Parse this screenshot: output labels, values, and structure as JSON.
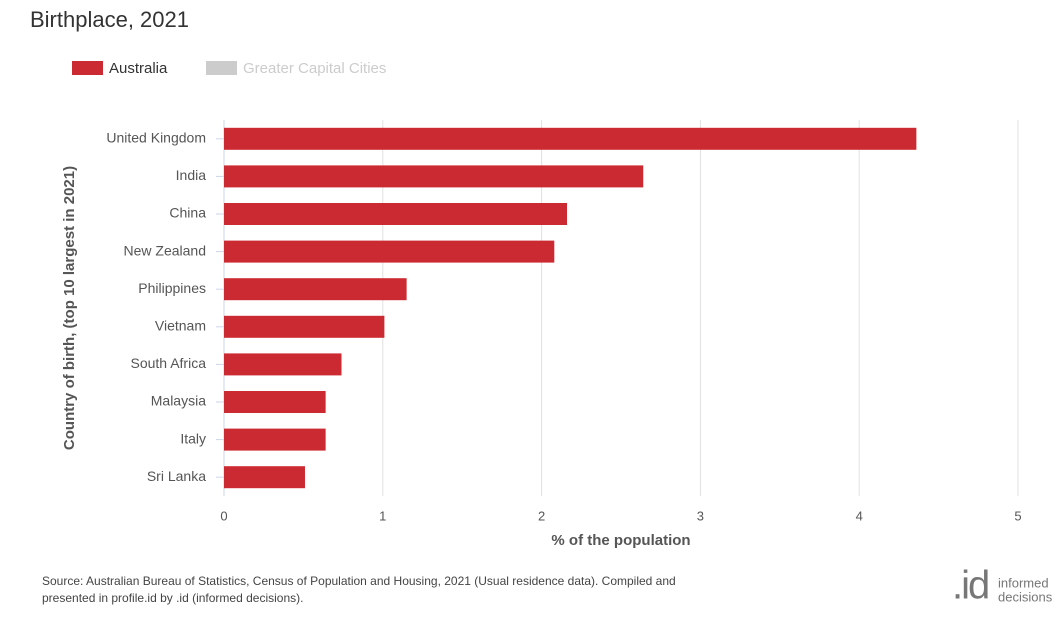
{
  "chart_data": {
    "type": "barh",
    "title": "Birthplace, 2021",
    "categories": [
      "United Kingdom",
      "India",
      "China",
      "New Zealand",
      "Philippines",
      "Vietnam",
      "South Africa",
      "Malaysia",
      "Italy",
      "Sri Lanka"
    ],
    "series": [
      {
        "name": "Australia",
        "color": "#cc2a32",
        "values": [
          4.36,
          2.64,
          2.16,
          2.08,
          1.15,
          1.01,
          0.74,
          0.64,
          0.64,
          0.51
        ]
      }
    ],
    "inactive_legend": {
      "name": "Greater Capital Cities",
      "color": "#cccccc"
    },
    "xlim": [
      0,
      5
    ],
    "xticks": [
      0,
      1,
      2,
      3,
      4,
      5
    ],
    "xlabel": "% of the population",
    "ylabel": "Country of birth, (top 10 largest in 2021)",
    "grid": true
  },
  "footer": {
    "source": [
      "Source: Australian Bureau of Statistics, Census of Population and Housing, 2021 (Usual residence data). Compiled and",
      "presented in profile.id by .id (informed decisions)."
    ],
    "logo": {
      "mark": ".id",
      "text": [
        "informed",
        "decisions"
      ]
    }
  }
}
